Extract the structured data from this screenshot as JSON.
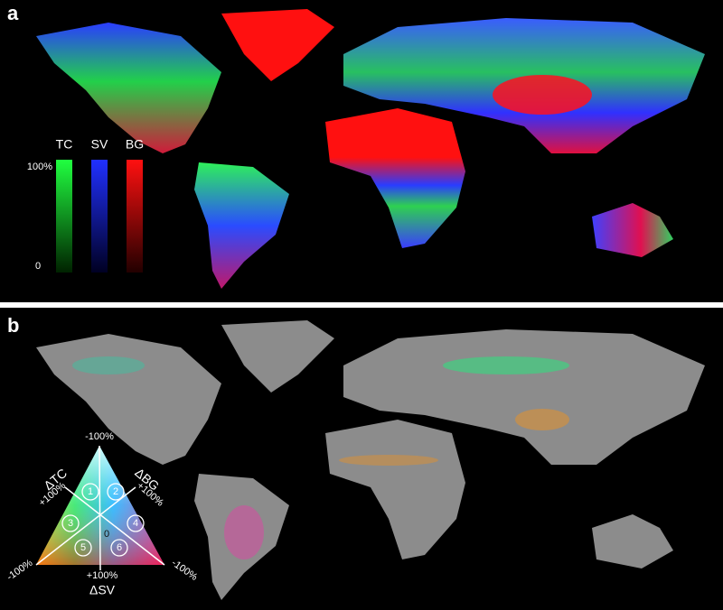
{
  "panels": [
    {
      "label": "a",
      "legend": {
        "bars": [
          {
            "label": "TC"
          },
          {
            "label": "SV"
          },
          {
            "label": "BG"
          }
        ],
        "scale_top": "100%",
        "scale_bottom": "0"
      }
    },
    {
      "label": "b",
      "legend": {
        "top": "-100%",
        "left_axis": "ΔTC",
        "left_end": "+100%",
        "right_axis": "ΔBG",
        "right_end": "+100%",
        "bottom_left": "-100%",
        "bottom_right": "-100%",
        "bottom_end": "+100%",
        "bottom_axis": "ΔSV",
        "center": "0",
        "sectors": [
          "1",
          "2",
          "3",
          "4",
          "5",
          "6"
        ]
      }
    }
  ]
}
